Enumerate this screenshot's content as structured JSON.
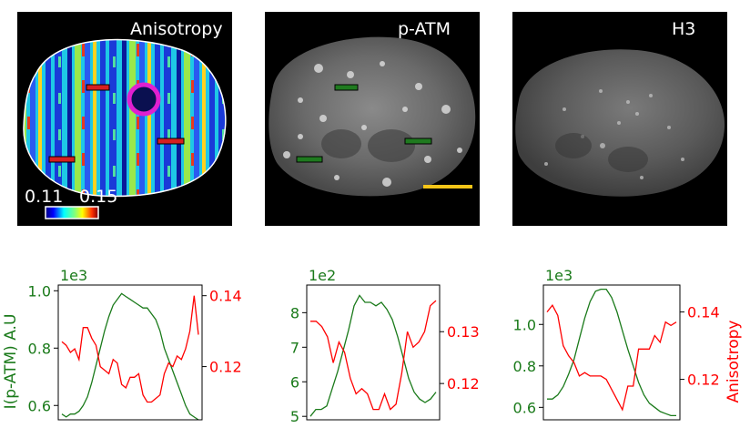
{
  "images": [
    {
      "title": "Anisotropy",
      "colorbar_min": "0.11",
      "colorbar_max": "0.15"
    },
    {
      "title": "p-ATM"
    },
    {
      "title": "H3"
    }
  ],
  "colors": {
    "green_series": "#1a7a1a",
    "red_series": "#ff0000",
    "roi_red": "#d62020",
    "roi_green": "#1f7a1f",
    "circle": "#e020d0",
    "scalebar": "#f5c518"
  },
  "chart_data": [
    {
      "type": "line",
      "left_multiplier": "1e3",
      "ylabel_left": "I(p-ATM) A.U",
      "ylabel_right": "",
      "ylim_left": [
        0.55,
        1.02
      ],
      "ylim_right": [
        0.105,
        0.143
      ],
      "left_ticks": [
        "0.6",
        "0.8",
        "1.0"
      ],
      "left_tick_values": [
        0.6,
        0.8,
        1.0
      ],
      "right_ticks": [
        "0.12",
        "0.14"
      ],
      "right_tick_values": [
        0.12,
        0.14
      ],
      "series": [
        {
          "values": [
            0.57,
            0.56,
            0.57,
            0.57,
            0.58,
            0.6,
            0.63,
            0.68,
            0.74,
            0.8,
            0.86,
            0.91,
            0.95,
            0.97,
            0.99,
            0.98,
            0.97,
            0.96,
            0.95,
            0.94,
            0.94,
            0.92,
            0.9,
            0.86,
            0.8,
            0.76,
            0.72,
            0.68,
            0.64,
            0.6,
            0.57,
            0.56,
            0.55
          ],
          "axis": "left",
          "color": "#1a7a1a"
        },
        {
          "values": [
            0.127,
            0.126,
            0.124,
            0.125,
            0.122,
            0.131,
            0.131,
            0.128,
            0.126,
            0.12,
            0.119,
            0.118,
            0.122,
            0.121,
            0.115,
            0.114,
            0.117,
            0.117,
            0.118,
            0.112,
            0.11,
            0.11,
            0.111,
            0.112,
            0.118,
            0.121,
            0.12,
            0.123,
            0.122,
            0.125,
            0.13,
            0.14,
            0.129
          ],
          "axis": "right",
          "color": "#ff0000"
        }
      ]
    },
    {
      "type": "line",
      "left_multiplier": "1e2",
      "ylabel_left": "",
      "ylabel_right": "",
      "ylim_left": [
        4.9,
        8.8
      ],
      "ylim_right": [
        0.113,
        0.139
      ],
      "left_ticks": [
        "5",
        "6",
        "7",
        "8"
      ],
      "left_tick_values": [
        5,
        6,
        7,
        8
      ],
      "right_ticks": [
        "0.12",
        "0.13"
      ],
      "right_tick_values": [
        0.12,
        0.13
      ],
      "series": [
        {
          "values": [
            5.0,
            5.2,
            5.2,
            5.3,
            5.8,
            6.3,
            6.9,
            7.5,
            8.2,
            8.5,
            8.3,
            8.3,
            8.2,
            8.3,
            8.1,
            7.8,
            7.3,
            6.7,
            6.1,
            5.7,
            5.5,
            5.4,
            5.5,
            5.7
          ],
          "axis": "left",
          "color": "#1a7a1a"
        },
        {
          "values": [
            0.132,
            0.132,
            0.131,
            0.129,
            0.124,
            0.128,
            0.126,
            0.121,
            0.118,
            0.119,
            0.118,
            0.115,
            0.115,
            0.118,
            0.115,
            0.116,
            0.122,
            0.13,
            0.127,
            0.128,
            0.13,
            0.135,
            0.136
          ],
          "axis": "right",
          "color": "#ff0000"
        }
      ]
    },
    {
      "type": "line",
      "left_multiplier": "1e3",
      "ylabel_left": "",
      "ylabel_right": "Anisotropy",
      "ylim_left": [
        0.54,
        1.19
      ],
      "ylim_right": [
        0.108,
        0.148
      ],
      "left_ticks": [
        "0.6",
        "0.8",
        "1.0"
      ],
      "left_tick_values": [
        0.6,
        0.8,
        1.0
      ],
      "right_ticks": [
        "0.12",
        "0.14"
      ],
      "right_tick_values": [
        0.12,
        0.14
      ],
      "series": [
        {
          "values": [
            0.64,
            0.64,
            0.66,
            0.7,
            0.76,
            0.83,
            0.93,
            1.03,
            1.11,
            1.16,
            1.17,
            1.17,
            1.13,
            1.06,
            0.97,
            0.88,
            0.8,
            0.72,
            0.66,
            0.62,
            0.6,
            0.58,
            0.57,
            0.56,
            0.56
          ],
          "axis": "left",
          "color": "#1a7a1a"
        },
        {
          "values": [
            0.14,
            0.142,
            0.139,
            0.13,
            0.127,
            0.125,
            0.121,
            0.122,
            0.121,
            0.121,
            0.121,
            0.12,
            0.117,
            0.114,
            0.111,
            0.118,
            0.118,
            0.129,
            0.129,
            0.129,
            0.133,
            0.131,
            0.137,
            0.136,
            0.137
          ],
          "axis": "right",
          "color": "#ff0000"
        }
      ]
    }
  ]
}
